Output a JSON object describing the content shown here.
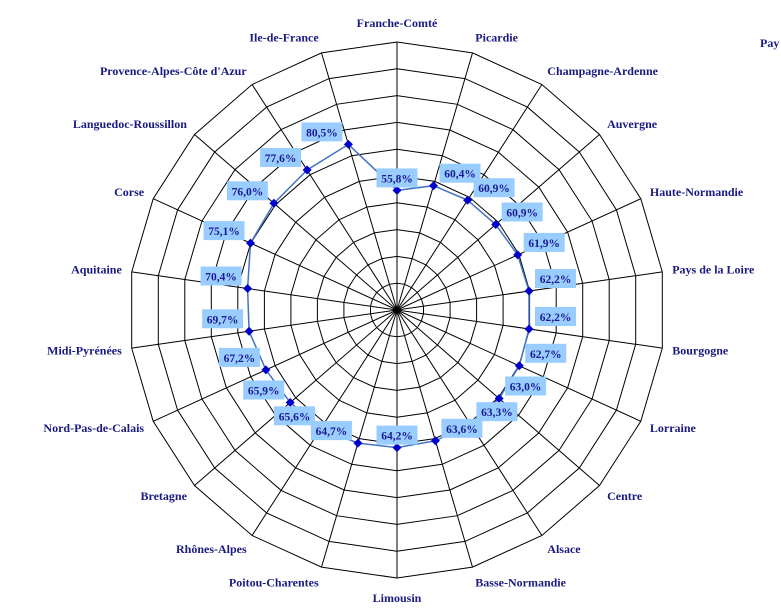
{
  "chart_data": {
    "type": "radar",
    "title": "",
    "categories": [
      "Franche-Comté",
      "Picardie",
      "Champagne-Ardenne",
      "Auvergne",
      "Haute-Normandie",
      "Pays de la Loire",
      "Bourgogne",
      "Lorraine",
      "Centre",
      "Alsace",
      "Basse-Normandie",
      "Limousin",
      "Poitou-Charentes",
      "Rhônes-Alpes",
      "Bretagne",
      "Nord-Pas-de-Calais",
      "Midi-Pyrénées",
      "Aquitaine",
      "Corse",
      "Languedoc-Roussillon",
      "Provence-Alpes-Côte d'Azur",
      "Ile-de-France"
    ],
    "values": [
      55.8,
      60.4,
      60.9,
      60.9,
      61.9,
      62.2,
      62.2,
      62.7,
      63.0,
      63.3,
      63.6,
      64.2,
      64.7,
      65.6,
      65.9,
      67.2,
      69.7,
      70.4,
      75.1,
      76.0,
      77.6,
      80.5
    ],
    "data_labels": [
      "55,8%",
      "60,4%",
      "60,9%",
      "60,9%",
      "61,9%",
      "62,2%",
      "62,2%",
      "62,7%",
      "63,0%",
      "63,3%",
      "63,6%",
      "64,2%",
      "64,7%",
      "65,6%",
      "65,9%",
      "67,2%",
      "69,7%",
      "70,4%",
      "75,1%",
      "76,0%",
      "77,6%",
      "80,5%"
    ],
    "rlim": [
      0,
      125
    ],
    "grid": true,
    "legend": "none",
    "series_color": "#4472c4",
    "marker_color": "#0000cc",
    "label_box_color": "#99ccff"
  },
  "clipped_label": "Pay"
}
